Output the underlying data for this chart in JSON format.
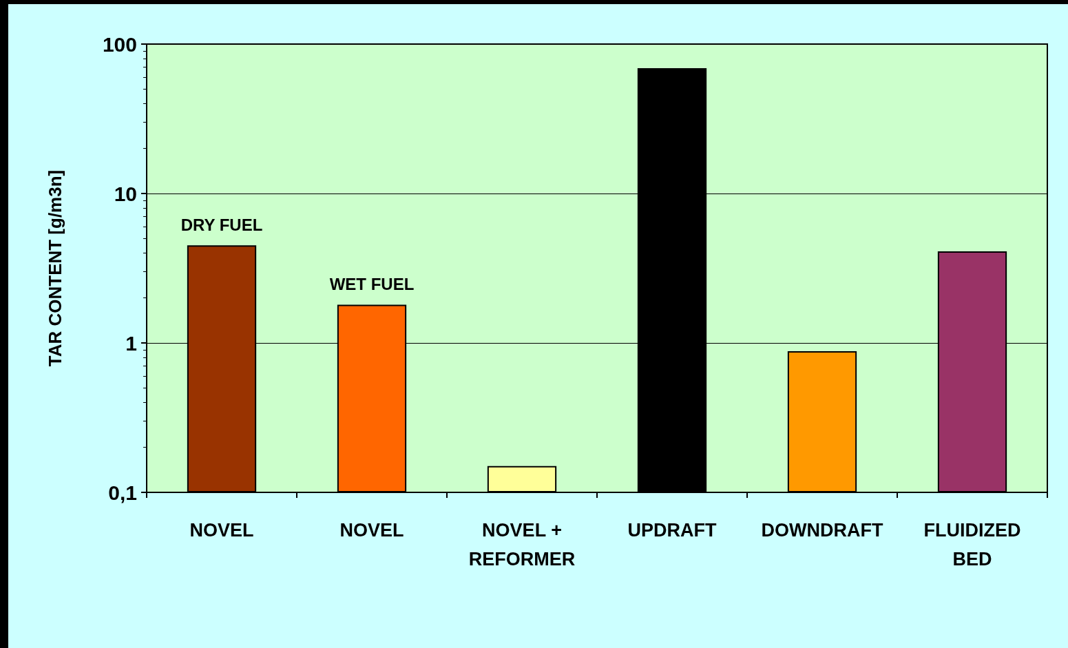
{
  "chart_data": {
    "type": "bar",
    "ylabel": "TAR CONTENT [g/m3n]",
    "categories": [
      "NOVEL",
      "NOVEL",
      "NOVEL +\nREFORMER",
      "UPDRAFT",
      "DOWNDRAFT",
      "FLUIDIZED\nBED"
    ],
    "values": [
      4.5,
      1.8,
      0.15,
      69,
      0.88,
      4.1
    ],
    "colors": [
      "#993300",
      "#ff6600",
      "#ffff99",
      "#000000",
      "#ff9900",
      "#993366"
    ],
    "value_labels": [
      "DRY FUEL",
      "WET FUEL",
      null,
      null,
      null,
      null
    ],
    "log": true,
    "ylim": [
      0.1,
      100
    ],
    "yticks": [
      {
        "value": 0.1,
        "label": "0,1"
      },
      1,
      10,
      100
    ],
    "grid": "y"
  }
}
